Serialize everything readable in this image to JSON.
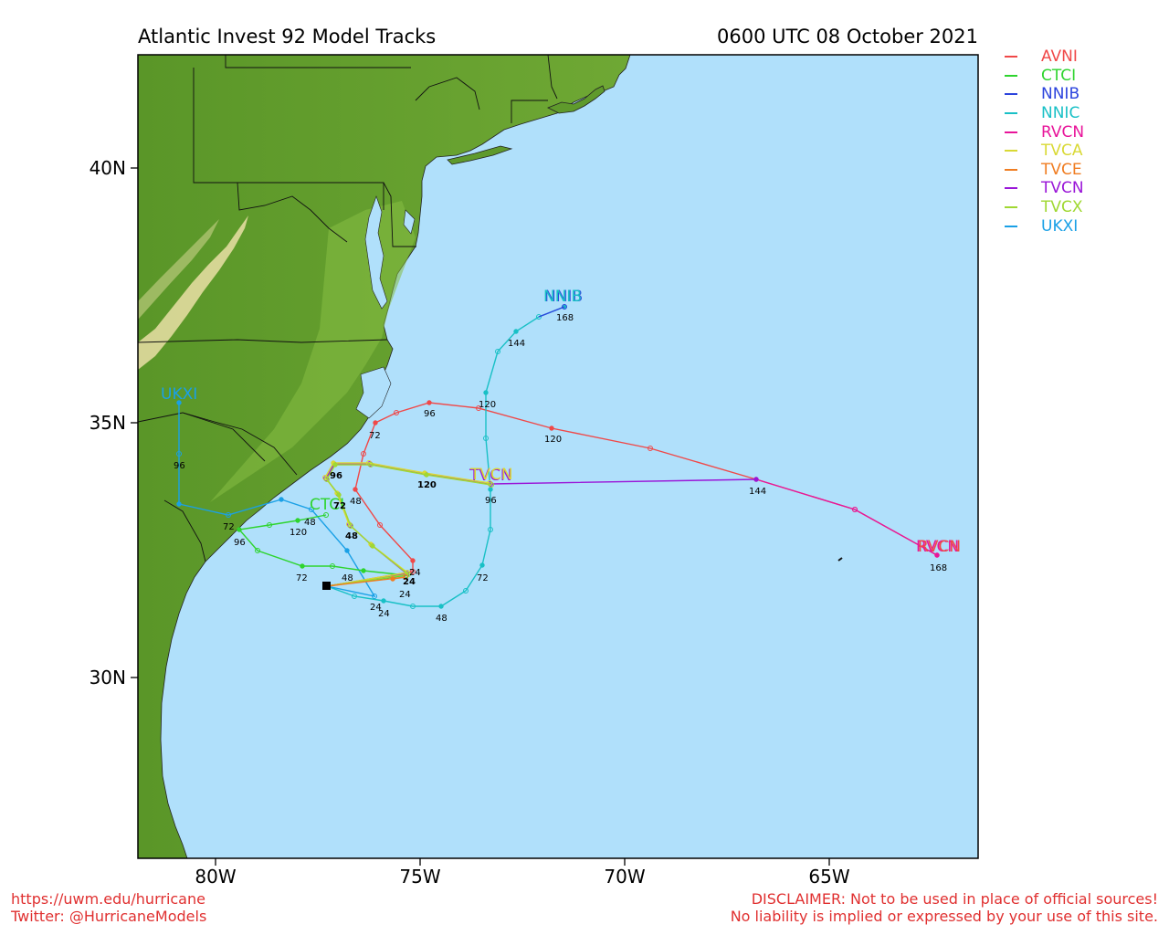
{
  "header": {
    "title": "Atlantic Invest 92 Model Tracks",
    "timestamp": "0600 UTC 08 October 2021"
  },
  "axes": {
    "lat_ticks": [
      "40N",
      "35N",
      "30N"
    ],
    "lon_ticks": [
      "80W",
      "75W",
      "70W",
      "65W"
    ]
  },
  "colors": {
    "ocean": "#b0e0fb",
    "land_dark": "#4e8a22",
    "land_mid": "#7fb43c",
    "land_light": "#eadfa6"
  },
  "legend": [
    {
      "name": "AVNI",
      "color": "#f04848"
    },
    {
      "name": "CTCI",
      "color": "#2ed42e"
    },
    {
      "name": "NNIB",
      "color": "#2c44dd"
    },
    {
      "name": "NNIC",
      "color": "#19c0c6"
    },
    {
      "name": "RVCN",
      "color": "#e8159a"
    },
    {
      "name": "TVCA",
      "color": "#d9d935"
    },
    {
      "name": "TVCE",
      "color": "#f07d22"
    },
    {
      "name": "TVCN",
      "color": "#9a16d8"
    },
    {
      "name": "TVCX",
      "color": "#a0d832"
    },
    {
      "name": "UKXI",
      "color": "#1aa0e6"
    }
  ],
  "map_labels": {
    "nnib": "NNIB",
    "ukxi": "UKXI",
    "ctci": "CTCI",
    "tvcn": "TVCN",
    "rvcn": "RVCN"
  },
  "hour_labels": {
    "avni": [
      "24",
      "48",
      "72",
      "96",
      "120"
    ],
    "nnic": [
      "24",
      "48",
      "72",
      "96",
      "120",
      "144",
      "168"
    ],
    "rvcn": [
      "144",
      "168"
    ],
    "ukxi": [
      "24",
      "48",
      "72",
      "96"
    ],
    "ctci": [
      "24",
      "48",
      "72",
      "96",
      "120"
    ],
    "consensus": [
      "24",
      "48",
      "72",
      "96",
      "120"
    ]
  },
  "footer": {
    "url": "https://uwm.edu/hurricane",
    "twitter": "Twitter: @HurricaneModels",
    "disclaimer1": "DISCLAIMER: Not to be used in place of official sources!",
    "disclaimer2": "No liability is implied or expressed by your use of this site."
  }
}
